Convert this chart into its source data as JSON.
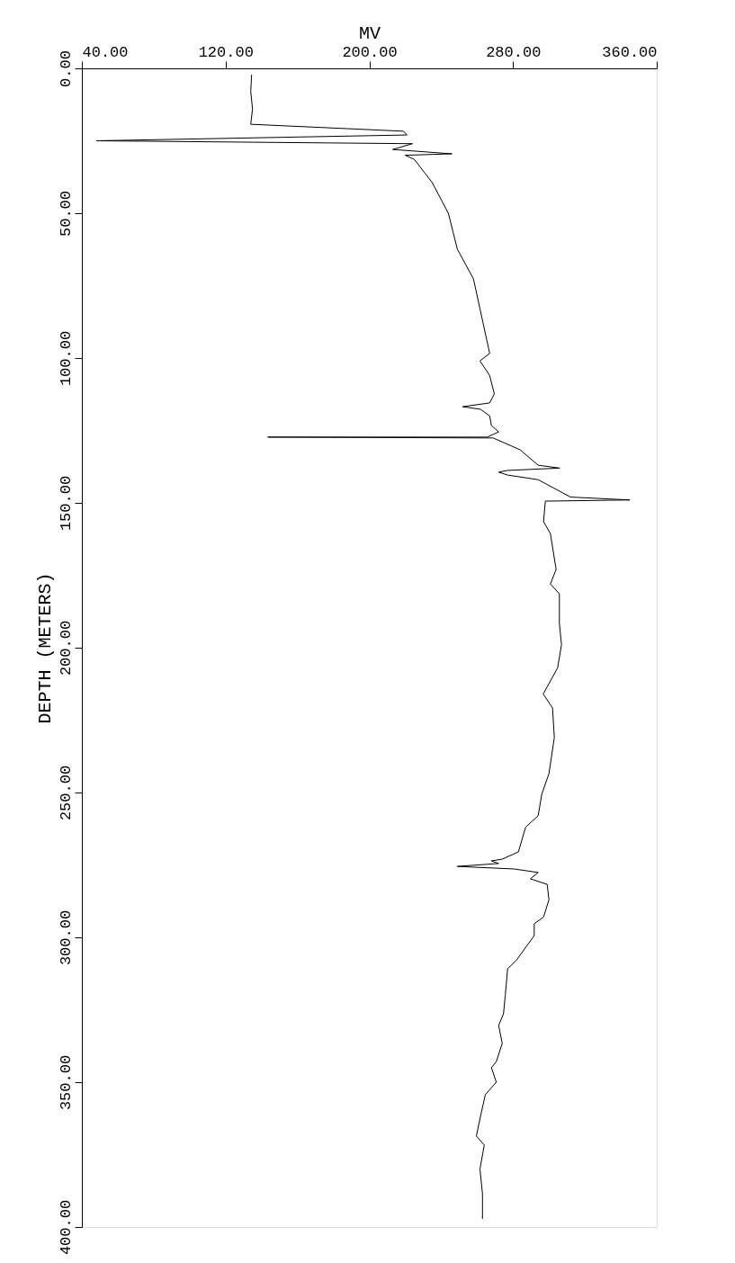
{
  "chart_data": {
    "type": "line",
    "xlabel": "MV",
    "ylabel": "DEPTH (METERS)",
    "xlim": [
      40,
      360
    ],
    "ylim": [
      400,
      0
    ],
    "xticks": [
      {
        "value": 40,
        "label": "40.00"
      },
      {
        "value": 120,
        "label": "120.00"
      },
      {
        "value": 200,
        "label": "200.00"
      },
      {
        "value": 280,
        "label": "280.00"
      },
      {
        "value": 360,
        "label": "360.00"
      }
    ],
    "yticks": [
      {
        "value": 0,
        "label": "0.00"
      },
      {
        "value": 50,
        "label": "50.00"
      },
      {
        "value": 100,
        "label": "100.00"
      },
      {
        "value": 150,
        "label": "150.00"
      },
      {
        "value": 200,
        "label": "200.00"
      },
      {
        "value": 250,
        "label": "250.00"
      },
      {
        "value": 300,
        "label": "300.00"
      },
      {
        "value": 350,
        "label": "350.00"
      },
      {
        "value": 400,
        "label": "400.00"
      }
    ],
    "grid": false,
    "marker": "none",
    "line_style": "solid",
    "series": [
      {
        "color": "#000000",
        "x": [
          134.5,
          134,
          135,
          134,
          219,
          221,
          48,
          224,
          213,
          246,
          220,
          225,
          235,
          244,
          249,
          258,
          265.6,
          267,
          261.6,
          267,
          269.6,
          267,
          252,
          262,
          267,
          268,
          272,
          265.6,
          143.5,
          269,
          284,
          294,
          306,
          277,
          272,
          277,
          294,
          312,
          345,
          298,
          297,
          300.8,
          304,
          300.8,
          305.8,
          305.8,
          307,
          304.8,
          296.8,
          302,
          303,
          300,
          296,
          294,
          287,
          283,
          274,
          268,
          272,
          249,
          280.7,
          294,
          289.7,
          299,
          300,
          297,
          291.8,
          291.8,
          282,
          277,
          275.7,
          274.7,
          272,
          274,
          270.7,
          268,
          270.7,
          264.6,
          262,
          259.6,
          264,
          261.6,
          263,
          263
        ],
        "values": [
          2.2,
          8,
          14,
          19.3,
          21.7,
          23,
          25,
          26,
          28,
          29.5,
          30,
          31.4,
          39.4,
          50,
          62.4,
          72.7,
          94.4,
          98.4,
          101,
          106,
          112.4,
          115.5,
          116.8,
          117.7,
          120,
          123.3,
          125.5,
          127.3,
          127.3,
          127.6,
          131.7,
          137,
          138,
          138.8,
          139.4,
          140.4,
          142,
          148,
          149,
          149.4,
          156.5,
          160.6,
          173,
          178,
          181.4,
          191.6,
          199,
          207,
          216,
          220.8,
          231,
          243.5,
          250.6,
          258,
          262,
          270.5,
          273,
          273.6,
          274.5,
          275.5,
          276.4,
          277.6,
          279.8,
          281.7,
          287,
          293,
          295.3,
          299.4,
          307.8,
          310.9,
          320,
          326.4,
          330.4,
          336.6,
          342.9,
          345,
          350,
          354.3,
          361.5,
          368.6,
          371.7,
          380,
          388.5,
          397.2
        ]
      }
    ]
  }
}
